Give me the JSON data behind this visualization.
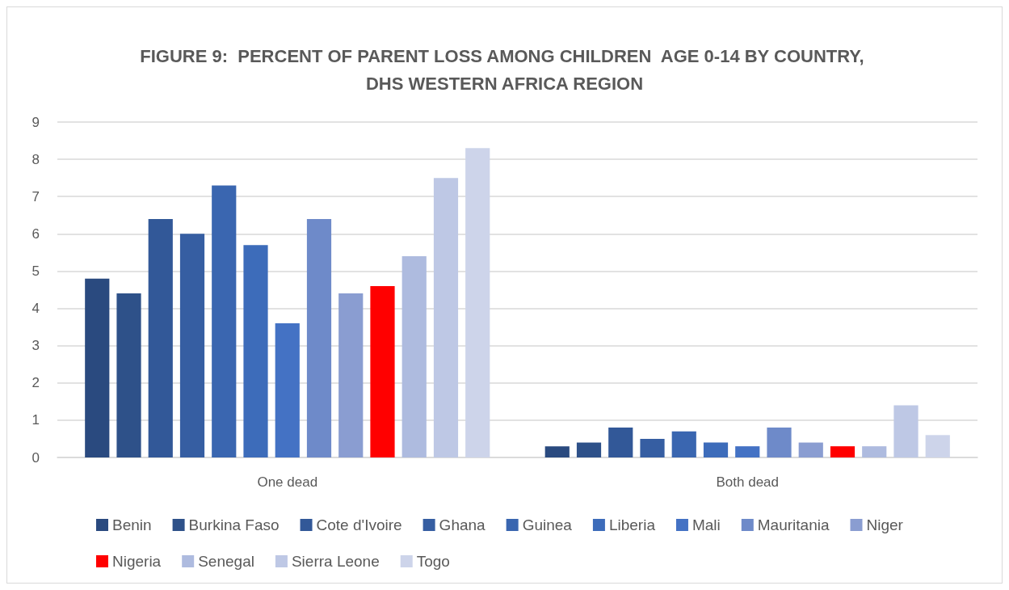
{
  "chart_data": {
    "type": "bar",
    "title": "FIGURE 9:  PERCENT OF PARENT LOSS AMONG CHILDREN  AGE 0-14 BY COUNTRY, DHS WESTERN AFRICA REGION",
    "categories": [
      "One dead",
      "Both dead"
    ],
    "series": [
      {
        "name": "Benin",
        "color": "#2a4a7f",
        "values": [
          4.8,
          0.3
        ]
      },
      {
        "name": "Burkina Faso",
        "color": "#2e5189",
        "values": [
          4.4,
          0.4
        ]
      },
      {
        "name": "Cote d'Ivoire",
        "color": "#325898",
        "values": [
          6.4,
          0.8
        ]
      },
      {
        "name": "Ghana",
        "color": "#365ea2",
        "values": [
          6.0,
          0.5
        ]
      },
      {
        "name": "Guinea",
        "color": "#3a66b0",
        "values": [
          7.3,
          0.7
        ]
      },
      {
        "name": "Liberia",
        "color": "#3d6cba",
        "values": [
          5.7,
          0.4
        ]
      },
      {
        "name": "Mali",
        "color": "#4472c4",
        "values": [
          3.6,
          0.3
        ]
      },
      {
        "name": "Mauritania",
        "color": "#6e8ac9",
        "values": [
          6.4,
          0.8
        ]
      },
      {
        "name": "Niger",
        "color": "#8a9dd1",
        "values": [
          4.4,
          0.4
        ]
      },
      {
        "name": "Nigeria",
        "color": "#ff0000",
        "values": [
          4.6,
          0.3
        ]
      },
      {
        "name": "Senegal",
        "color": "#aebbdf",
        "values": [
          5.4,
          0.3
        ]
      },
      {
        "name": "Sierra Leone",
        "color": "#bec8e5",
        "values": [
          7.5,
          1.4
        ]
      },
      {
        "name": "Togo",
        "color": "#cdd4ea",
        "values": [
          8.3,
          0.6
        ]
      }
    ],
    "ylim": [
      0,
      9
    ],
    "yticks": [
      0,
      1,
      2,
      3,
      4,
      5,
      6,
      7,
      8,
      9
    ],
    "grid": "y",
    "legend": "bottom"
  }
}
